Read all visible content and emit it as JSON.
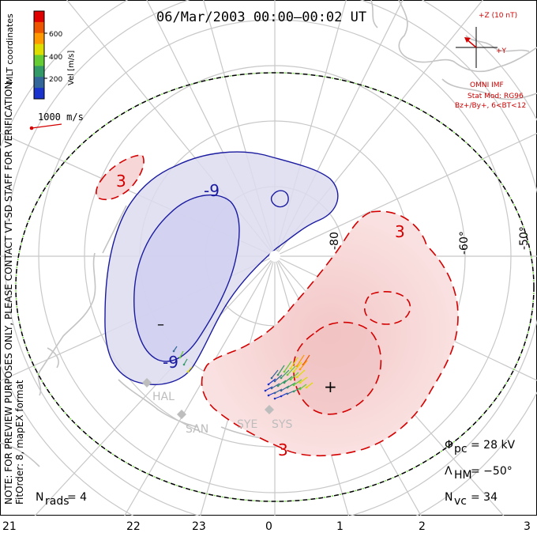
{
  "title": "06/Mar/2003 00:00–00:02 UT",
  "coord_system": "MLT coordinates",
  "colorbar": {
    "label": "Vel [m/s]",
    "ticks": [
      "600",
      "400",
      "200"
    ],
    "colors": [
      "#e00000",
      "#ee5500",
      "#ff9900",
      "#dddd00",
      "#66cc33",
      "#339966",
      "#336699",
      "#1a33cc"
    ]
  },
  "speed_ref": "1000 m/s",
  "notes": {
    "preview": "NOTE: FOR PREVIEW PURPOSES ONLY, PLEASE CONTACT VT-SD STAFF FOR VERIFICATION.",
    "fit": "FitOrder: 8, mapEX format"
  },
  "imf": {
    "z_label": "+Z (10 nT)",
    "y_label": "+Y",
    "source": "OMNI IMF",
    "stat_mod": "Stat Mod: RG96",
    "conditions": "Bz+/By+, 6<BT<12"
  },
  "latitude_labels": [
    "-80",
    "-60°",
    "-50°"
  ],
  "mlt_ticks": [
    "21",
    "22",
    "23",
    "0",
    "1",
    "2",
    "3"
  ],
  "contours": {
    "negative_label": "-9",
    "positive_label": "3",
    "min_marker": "–",
    "max_marker": "+"
  },
  "radars": [
    "HAL",
    "SAN",
    "SYE",
    "SYS"
  ],
  "stats": {
    "phi_symbol": "Φ",
    "phi_sub": "pc",
    "phi_value": "= 28 kV",
    "lambda_symbol": "Λ",
    "lambda_sub": "HM",
    "lambda_value": "= −50°",
    "nvc_symbol": "N",
    "nvc_sub": "vc",
    "nvc_value": "= 34",
    "nrads_symbol": "N",
    "nrads_sub": "rads",
    "nrads_value": "= 4"
  }
}
